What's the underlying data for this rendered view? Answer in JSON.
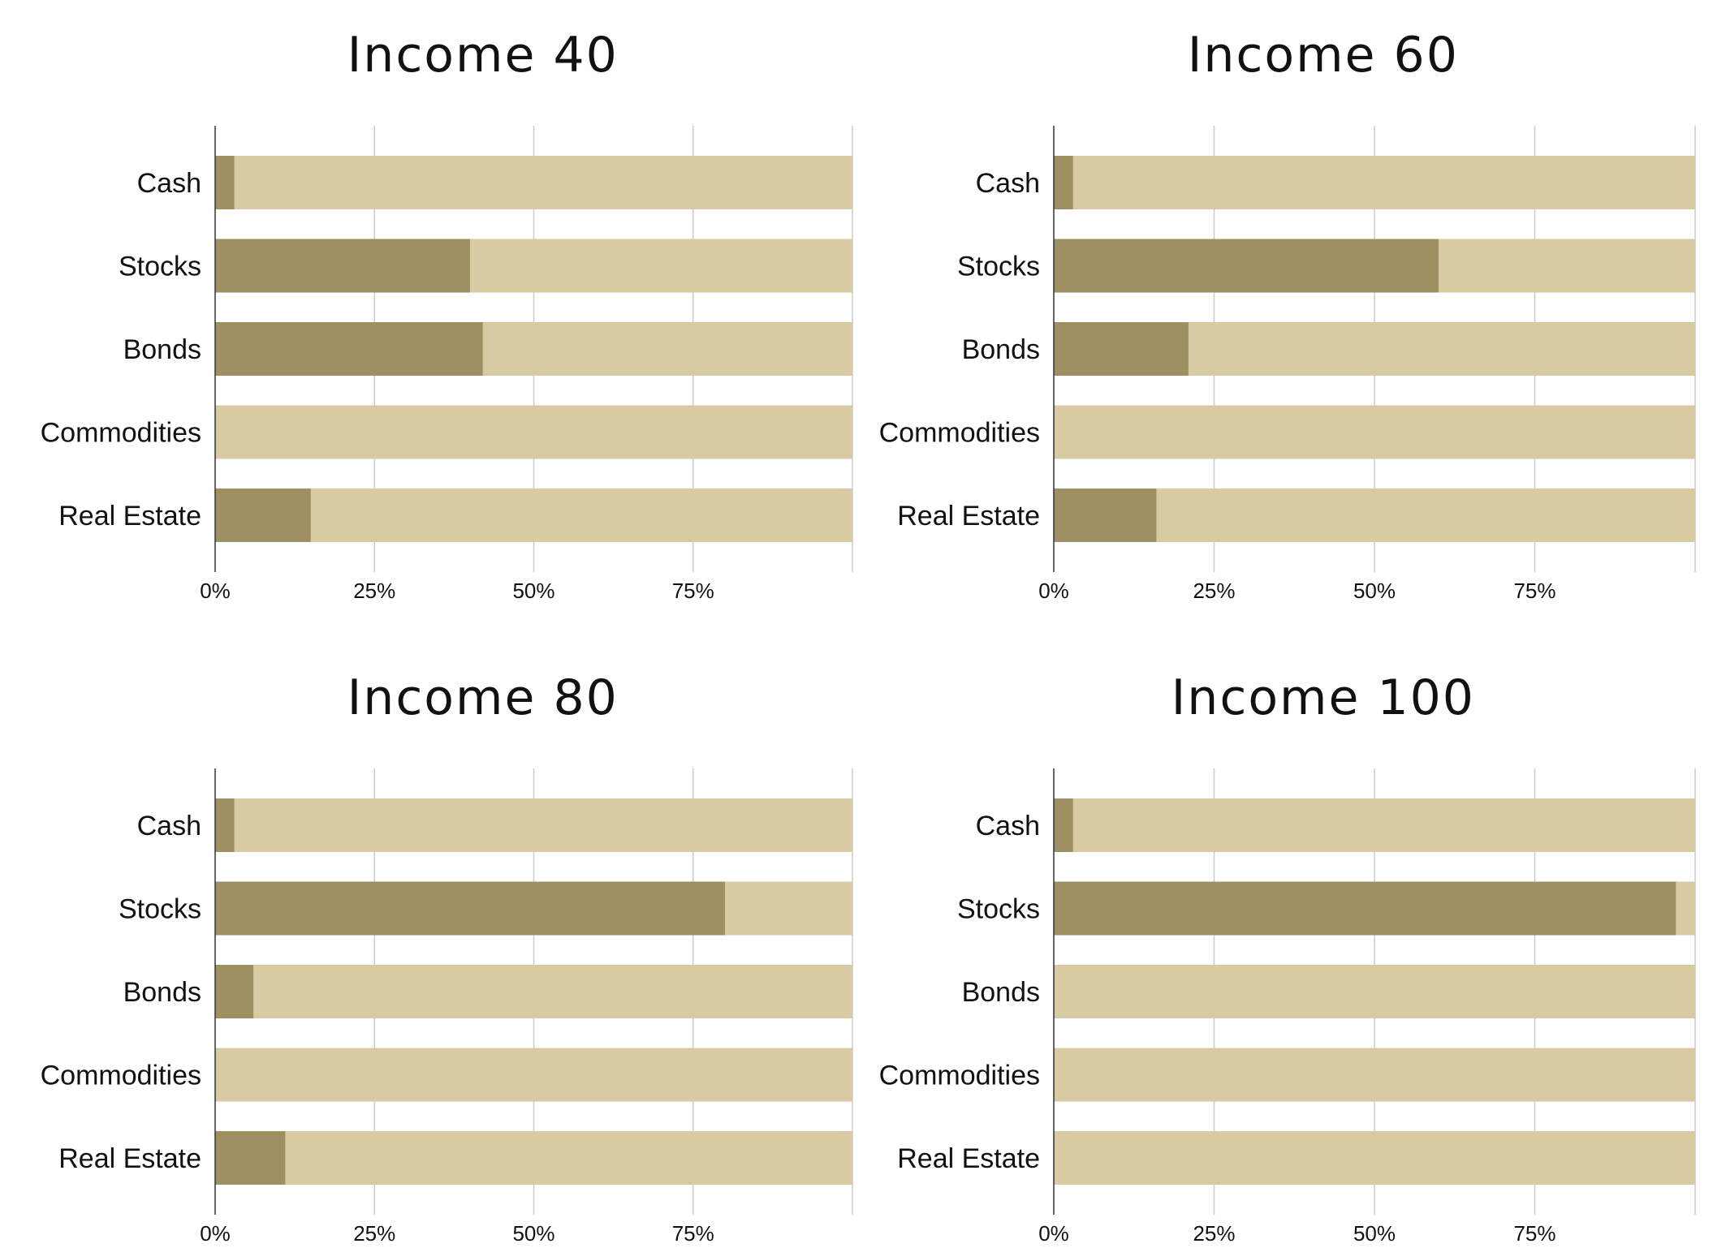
{
  "chart_data": [
    {
      "type": "bar",
      "orientation": "horizontal",
      "stacked": true,
      "title": "Income 40",
      "categories": [
        "Cash",
        "Stocks",
        "Bonds",
        "Commodities",
        "Real Estate"
      ],
      "values": [
        3,
        40,
        42,
        0,
        15
      ],
      "xlim": [
        0,
        100
      ],
      "xticks": [
        "0%",
        "25%",
        "50%",
        "75%"
      ],
      "grid": true
    },
    {
      "type": "bar",
      "orientation": "horizontal",
      "stacked": true,
      "title": "Income 60",
      "categories": [
        "Cash",
        "Stocks",
        "Bonds",
        "Commodities",
        "Real Estate"
      ],
      "values": [
        3,
        60,
        21,
        0,
        16
      ],
      "xlim": [
        0,
        100
      ],
      "xticks": [
        "0%",
        "25%",
        "50%",
        "75%"
      ],
      "grid": true
    },
    {
      "type": "bar",
      "orientation": "horizontal",
      "stacked": true,
      "title": "Income 80",
      "categories": [
        "Cash",
        "Stocks",
        "Bonds",
        "Commodities",
        "Real Estate"
      ],
      "values": [
        3,
        80,
        6,
        0,
        11
      ],
      "xlim": [
        0,
        100
      ],
      "xticks": [
        "0%",
        "25%",
        "50%",
        "75%"
      ],
      "grid": true
    },
    {
      "type": "bar",
      "orientation": "horizontal",
      "stacked": true,
      "title": "Income 100",
      "categories": [
        "Cash",
        "Stocks",
        "Bonds",
        "Commodities",
        "Real Estate"
      ],
      "values": [
        3,
        97,
        0,
        0,
        0
      ],
      "xlim": [
        0,
        100
      ],
      "xticks": [
        "0%",
        "25%",
        "50%",
        "75%"
      ],
      "grid": true
    }
  ],
  "colors": {
    "allocation": "#9e9063",
    "remainder": "#d8caa3",
    "grid": "#cccccc",
    "axis": "#333333"
  }
}
